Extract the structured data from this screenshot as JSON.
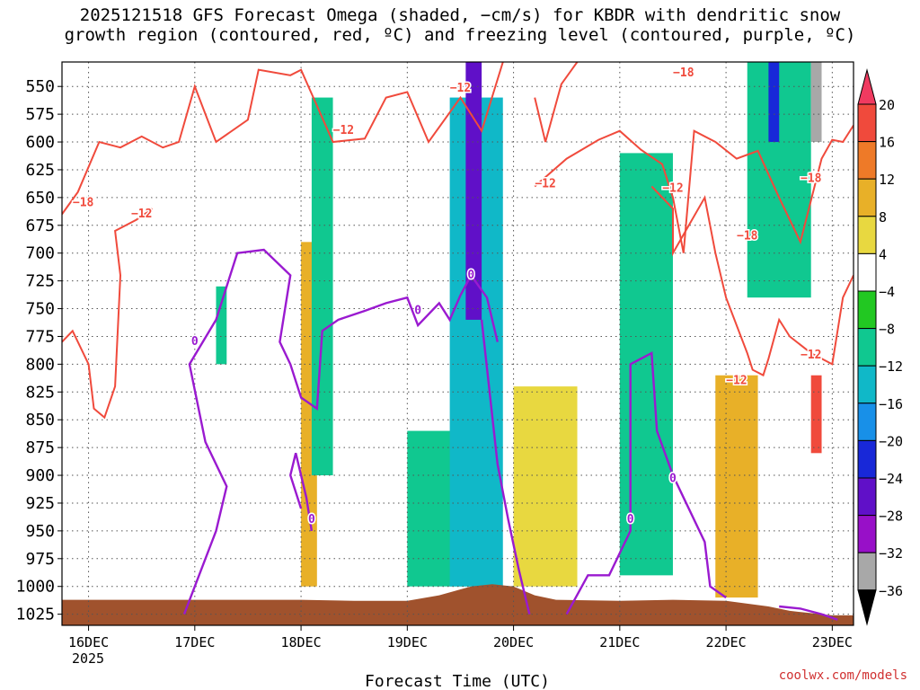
{
  "title_line1": "2025121518 GFS Forecast Omega (shaded, −cm/s) for KBDR with dendritic snow",
  "title_line2": "growth region (contoured, red, ºC) and freezing level (contoured, purple, ºC)",
  "credit": "coolwx.com/models",
  "colors": {
    "dgz_contour": "#f04a3c",
    "freezing_contour": "#9a1ad0",
    "terrain": "#a0522d",
    "grid": "#555555"
  },
  "chart_data": {
    "type": "heatmap",
    "xlabel": "Forecast Time (UTC)",
    "x_ticks": [
      "16DEC",
      "17DEC",
      "18DEC",
      "19DEC",
      "20DEC",
      "21DEC",
      "22DEC",
      "23DEC"
    ],
    "x_year_label": "2025",
    "y_ticks": [
      550,
      575,
      600,
      625,
      650,
      675,
      700,
      725,
      750,
      775,
      800,
      825,
      850,
      875,
      900,
      925,
      950,
      975,
      1000,
      1025
    ],
    "y_range_hpa": [
      528,
      1035
    ],
    "x_range_days": [
      -0.25,
      7.2
    ],
    "y_scale": "pressure, increasing downward",
    "colorbar": {
      "labels": [
        "20",
        "16",
        "12",
        "8",
        "4",
        "−4",
        "−8",
        "−12",
        "−16",
        "−20",
        "−24",
        "−28",
        "−32",
        "−36"
      ],
      "colors": [
        "#f03a60",
        "#f04a3c",
        "#ee7a28",
        "#e8b028",
        "#e8d840",
        "#ffffff",
        "#22c822",
        "#10c890",
        "#10b8c8",
        "#1890e8",
        "#1828d8",
        "#6010c8",
        "#9810c8",
        "#a8a8a8",
        "#000000"
      ]
    },
    "omega_regions": [
      {
        "x": [
          1.2,
          1.3
        ],
        "p": [
          730,
          800
        ],
        "value": -8
      },
      {
        "x": [
          2.0,
          2.15
        ],
        "p": [
          690,
          1000
        ],
        "value": 10
      },
      {
        "x": [
          2.1,
          2.3
        ],
        "p": [
          560,
          900
        ],
        "value": -10
      },
      {
        "x": [
          3.0,
          3.6
        ],
        "p": [
          860,
          1000
        ],
        "value": -8
      },
      {
        "x": [
          3.4,
          3.9
        ],
        "p": [
          560,
          1000
        ],
        "value": -14
      },
      {
        "x": [
          3.55,
          3.7
        ],
        "p": [
          528,
          760
        ],
        "value": -26
      },
      {
        "x": [
          4.0,
          4.6
        ],
        "p": [
          820,
          1000
        ],
        "value": 8
      },
      {
        "x": [
          5.0,
          5.5
        ],
        "p": [
          610,
          990
        ],
        "value": -10
      },
      {
        "x": [
          5.9,
          6.3
        ],
        "p": [
          810,
          1010
        ],
        "value": 9
      },
      {
        "x": [
          6.2,
          6.8
        ],
        "p": [
          528,
          740
        ],
        "value": -10
      },
      {
        "x": [
          6.4,
          6.5
        ],
        "p": [
          528,
          600
        ],
        "value": -22
      },
      {
        "x": [
          6.8,
          6.9
        ],
        "p": [
          528,
          600
        ],
        "value": -34
      },
      {
        "x": [
          6.8,
          6.9
        ],
        "p": [
          810,
          880
        ],
        "value": 18
      }
    ],
    "contour_labels": [
      {
        "x": -0.05,
        "p": 655,
        "text": "−18",
        "set": "dgz"
      },
      {
        "x": 0.5,
        "p": 665,
        "text": "−12",
        "set": "dgz"
      },
      {
        "x": 2.4,
        "p": 590,
        "text": "−12",
        "set": "dgz"
      },
      {
        "x": 3.5,
        "p": 552,
        "text": "−12",
        "set": "dgz"
      },
      {
        "x": 4.3,
        "p": 638,
        "text": "−12",
        "set": "dgz"
      },
      {
        "x": 5.5,
        "p": 642,
        "text": "−12",
        "set": "dgz"
      },
      {
        "x": 5.6,
        "p": 538,
        "text": "−18",
        "set": "dgz"
      },
      {
        "x": 6.2,
        "p": 685,
        "text": "−18",
        "set": "dgz"
      },
      {
        "x": 6.1,
        "p": 815,
        "text": "−12",
        "set": "dgz"
      },
      {
        "x": 6.8,
        "p": 792,
        "text": "−12",
        "set": "dgz"
      },
      {
        "x": 6.8,
        "p": 633,
        "text": "−18",
        "set": "dgz"
      },
      {
        "x": 1.0,
        "p": 780,
        "text": "0",
        "set": "freezing"
      },
      {
        "x": 2.1,
        "p": 940,
        "text": "0",
        "set": "freezing"
      },
      {
        "x": 3.1,
        "p": 752,
        "text": "0",
        "set": "freezing"
      },
      {
        "x": 3.6,
        "p": 720,
        "text": "0",
        "set": "freezing"
      },
      {
        "x": 5.1,
        "p": 940,
        "text": "0",
        "set": "freezing"
      },
      {
        "x": 5.5,
        "p": 903,
        "text": "0",
        "set": "freezing"
      }
    ],
    "dgz_contours": [
      [
        [
          -0.25,
          665
        ],
        [
          -0.1,
          645
        ],
        [
          0.1,
          600
        ],
        [
          0.3,
          605
        ],
        [
          0.5,
          595
        ],
        [
          0.7,
          605
        ],
        [
          0.85,
          600
        ],
        [
          1.0,
          550
        ],
        [
          1.2,
          600
        ],
        [
          1.5,
          580
        ],
        [
          1.6,
          535
        ],
        [
          1.9,
          540
        ],
        [
          2.0,
          535
        ],
        [
          2.3,
          600
        ],
        [
          2.6,
          597
        ],
        [
          2.8,
          560
        ],
        [
          3.0,
          555
        ],
        [
          3.2,
          600
        ],
        [
          3.5,
          560
        ],
        [
          3.7,
          590
        ],
        [
          3.9,
          528
        ]
      ],
      [
        [
          4.2,
          560
        ],
        [
          4.3,
          600
        ],
        [
          4.45,
          548
        ],
        [
          4.6,
          528
        ]
      ],
      [
        [
          4.2,
          640
        ],
        [
          4.5,
          615
        ],
        [
          4.8,
          598
        ],
        [
          5.0,
          590
        ],
        [
          5.2,
          607
        ],
        [
          5.4,
          620
        ],
        [
          5.5,
          650
        ],
        [
          5.6,
          700
        ],
        [
          5.7,
          590
        ],
        [
          5.9,
          600
        ],
        [
          6.1,
          615
        ],
        [
          6.3,
          608
        ],
        [
          6.5,
          650
        ],
        [
          6.7,
          690
        ],
        [
          6.9,
          615
        ],
        [
          7.0,
          598
        ],
        [
          7.1,
          600
        ],
        [
          7.2,
          585
        ]
      ],
      [
        [
          -0.25,
          780
        ],
        [
          -0.15,
          770
        ],
        [
          0.0,
          800
        ],
        [
          0.05,
          840
        ],
        [
          0.15,
          848
        ],
        [
          0.25,
          820
        ],
        [
          0.3,
          720
        ],
        [
          0.25,
          680
        ],
        [
          0.45,
          670
        ],
        [
          0.6,
          660
        ]
      ],
      [
        [
          5.3,
          640
        ],
        [
          5.5,
          660
        ],
        [
          5.5,
          700
        ],
        [
          5.8,
          650
        ],
        [
          5.9,
          700
        ],
        [
          6.0,
          740
        ],
        [
          6.2,
          790
        ],
        [
          6.25,
          805
        ],
        [
          6.35,
          810
        ],
        [
          6.4,
          795
        ],
        [
          6.5,
          760
        ],
        [
          6.6,
          775
        ],
        [
          6.8,
          790
        ],
        [
          7.0,
          800
        ],
        [
          7.1,
          740
        ],
        [
          7.2,
          720
        ]
      ]
    ],
    "freezing_contours": [
      [
        [
          0.9,
          1025
        ],
        [
          1.2,
          950
        ],
        [
          1.3,
          910
        ],
        [
          1.1,
          870
        ],
        [
          0.95,
          800
        ],
        [
          1.2,
          760
        ],
        [
          1.4,
          700
        ],
        [
          1.65,
          697
        ],
        [
          1.9,
          720
        ],
        [
          1.8,
          780
        ],
        [
          1.9,
          800
        ],
        [
          2.0,
          830
        ],
        [
          2.15,
          840
        ],
        [
          2.2,
          770
        ],
        [
          2.35,
          760
        ],
        [
          2.6,
          752
        ],
        [
          2.8,
          745
        ],
        [
          3.0,
          740
        ],
        [
          3.1,
          765
        ],
        [
          3.3,
          745
        ],
        [
          3.4,
          760
        ],
        [
          3.5,
          738
        ],
        [
          3.6,
          720
        ],
        [
          3.75,
          740
        ],
        [
          3.85,
          780
        ]
      ],
      [
        [
          2.1,
          950
        ],
        [
          2.05,
          920
        ],
        [
          1.95,
          880
        ],
        [
          1.9,
          900
        ],
        [
          2.0,
          930
        ]
      ],
      [
        [
          3.7,
          760
        ],
        [
          3.85,
          890
        ],
        [
          3.95,
          940
        ],
        [
          4.05,
          985
        ],
        [
          4.15,
          1025
        ]
      ],
      [
        [
          4.5,
          1025
        ],
        [
          4.7,
          990
        ],
        [
          4.9,
          990
        ],
        [
          5.1,
          950
        ],
        [
          5.1,
          800
        ],
        [
          5.3,
          790
        ],
        [
          5.35,
          860
        ],
        [
          5.5,
          900
        ],
        [
          5.6,
          920
        ],
        [
          5.8,
          960
        ],
        [
          5.85,
          1000
        ],
        [
          6.0,
          1010
        ]
      ],
      [
        [
          6.5,
          1018
        ],
        [
          6.7,
          1020
        ],
        [
          6.9,
          1025
        ],
        [
          7.05,
          1030
        ]
      ]
    ],
    "terrain_surface": [
      [
        -0.25,
        1012
      ],
      [
        0.5,
        1012
      ],
      [
        1.0,
        1012
      ],
      [
        1.5,
        1012
      ],
      [
        2.0,
        1012
      ],
      [
        2.5,
        1013
      ],
      [
        3.0,
        1013
      ],
      [
        3.3,
        1008
      ],
      [
        3.6,
        1000
      ],
      [
        3.8,
        998
      ],
      [
        4.0,
        1000
      ],
      [
        4.2,
        1008
      ],
      [
        4.4,
        1012
      ],
      [
        5.0,
        1013
      ],
      [
        5.5,
        1012
      ],
      [
        6.0,
        1013
      ],
      [
        6.4,
        1018
      ],
      [
        6.6,
        1022
      ],
      [
        7.0,
        1026
      ],
      [
        7.2,
        1026
      ]
    ]
  }
}
